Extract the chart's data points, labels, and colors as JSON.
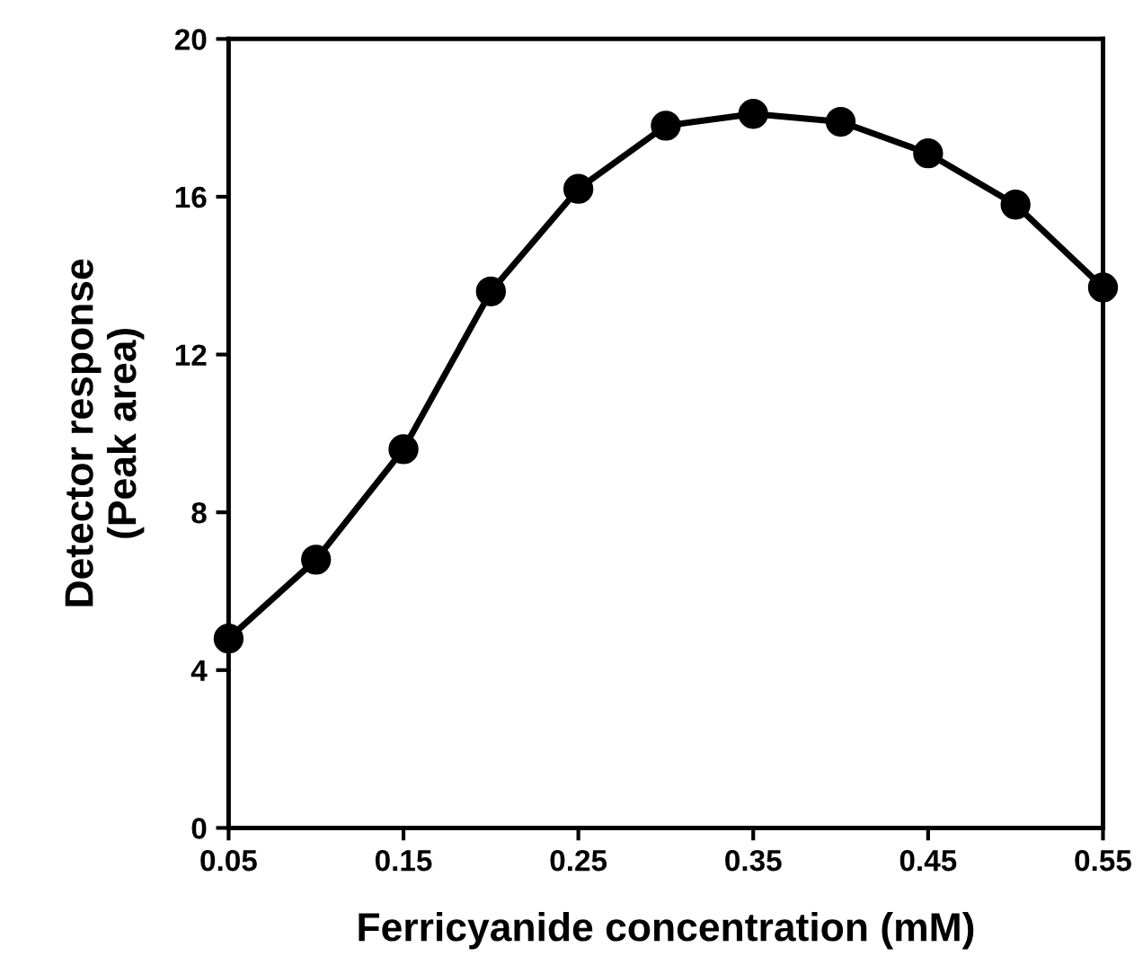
{
  "chart_data": {
    "type": "line",
    "xlabel": "Ferricyanide concentration (mM)",
    "ylabel": "Detector response\n(Peak area)",
    "x": [
      0.05,
      0.1,
      0.15,
      0.2,
      0.25,
      0.3,
      0.35,
      0.4,
      0.45,
      0.5,
      0.55
    ],
    "series": [
      {
        "color": "#000000",
        "values": [
          4.8,
          6.8,
          9.6,
          13.6,
          16.2,
          17.8,
          18.1,
          17.9,
          17.1,
          15.8,
          13.7
        ]
      }
    ],
    "xlim": [
      0.05,
      0.55
    ],
    "xticks": [
      0.05,
      0.15,
      0.25,
      0.35,
      0.45,
      0.55
    ],
    "ylim": [
      0,
      20
    ],
    "yticks": [
      0,
      4,
      8,
      12,
      16,
      20
    ],
    "grid": false,
    "legend": false,
    "marker": "circle",
    "line_style": "solid"
  }
}
